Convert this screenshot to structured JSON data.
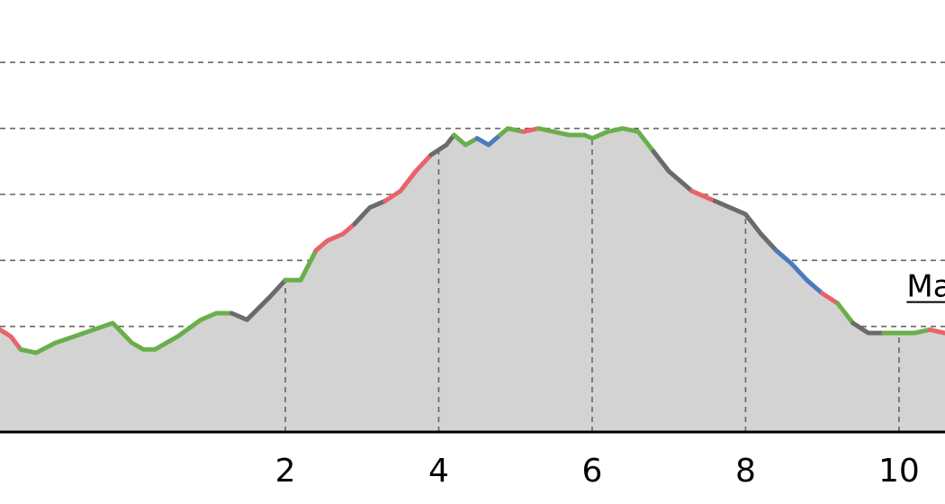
{
  "chart_data": {
    "type": "area",
    "title": "",
    "xlabel": "",
    "ylabel": "",
    "xlim": [
      -1.72,
      10.6
    ],
    "ylim": [
      0,
      6
    ],
    "grid": {
      "x": "dashed",
      "y": "dashed"
    },
    "x_ticks": [
      2,
      4,
      6,
      8,
      10
    ],
    "x_tick_labels": [
      "2",
      "4",
      "6",
      "8",
      "10"
    ],
    "y_gridlines": [
      0.65,
      1.6,
      2.6,
      3.6,
      4.6,
      5.6
    ],
    "fill_color": "#d3d3d3",
    "segment_colors": {
      "red": "#e8636a",
      "green": "#6aaf4a",
      "gray": "#6b6b6b",
      "blue": "#4a7bbf"
    },
    "profile": {
      "x": [
        -1.72,
        -1.58,
        -1.45,
        -1.25,
        -1.0,
        -0.75,
        -0.5,
        -0.25,
        0.0,
        0.15,
        0.3,
        0.6,
        0.9,
        1.1,
        1.3,
        1.5,
        1.8,
        2.0,
        2.2,
        2.4,
        2.55,
        2.75,
        2.9,
        3.1,
        3.3,
        3.5,
        3.7,
        3.9,
        4.1,
        4.2,
        4.35,
        4.5,
        4.65,
        4.8,
        4.9,
        5.1,
        5.3,
        5.5,
        5.7,
        5.9,
        6.0,
        6.2,
        6.4,
        6.6,
        6.8,
        7.0,
        7.3,
        7.6,
        7.8,
        8.0,
        8.2,
        8.4,
        8.6,
        8.8,
        9.0,
        9.2,
        9.4,
        9.6,
        9.8,
        10.0,
        10.2,
        10.4,
        10.6
      ],
      "y": [
        1.55,
        1.45,
        1.25,
        1.2,
        1.35,
        1.45,
        1.55,
        1.65,
        1.35,
        1.25,
        1.25,
        1.45,
        1.7,
        1.8,
        1.8,
        1.7,
        2.05,
        2.3,
        2.3,
        2.75,
        2.9,
        3.0,
        3.15,
        3.4,
        3.5,
        3.65,
        3.95,
        4.2,
        4.35,
        4.5,
        4.35,
        4.45,
        4.35,
        4.5,
        4.6,
        4.55,
        4.6,
        4.55,
        4.5,
        4.5,
        4.45,
        4.55,
        4.6,
        4.55,
        4.25,
        3.95,
        3.65,
        3.5,
        3.4,
        3.3,
        3.0,
        2.75,
        2.55,
        2.3,
        2.1,
        1.95,
        1.65,
        1.5,
        1.5,
        1.5,
        1.5,
        1.55,
        1.5
      ],
      "segments": [
        {
          "color": "red",
          "from": 0,
          "to": 2
        },
        {
          "color": "green",
          "from": 2,
          "to": 14
        },
        {
          "color": "gray",
          "from": 14,
          "to": 17
        },
        {
          "color": "green",
          "from": 17,
          "to": 19
        },
        {
          "color": "red",
          "from": 19,
          "to": 22
        },
        {
          "color": "gray",
          "from": 22,
          "to": 24
        },
        {
          "color": "red",
          "from": 24,
          "to": 27
        },
        {
          "color": "gray",
          "from": 27,
          "to": 29
        },
        {
          "color": "green",
          "from": 29,
          "to": 31
        },
        {
          "color": "blue",
          "from": 31,
          "to": 33
        },
        {
          "color": "green",
          "from": 33,
          "to": 35
        },
        {
          "color": "red",
          "from": 35,
          "to": 36
        },
        {
          "color": "green",
          "from": 36,
          "to": 44
        },
        {
          "color": "gray",
          "from": 44,
          "to": 46
        },
        {
          "color": "red",
          "from": 46,
          "to": 47
        },
        {
          "color": "gray",
          "from": 47,
          "to": 51
        },
        {
          "color": "blue",
          "from": 51,
          "to": 54
        },
        {
          "color": "red",
          "from": 54,
          "to": 55
        },
        {
          "color": "green",
          "from": 55,
          "to": 56
        },
        {
          "color": "gray",
          "from": 56,
          "to": 58
        },
        {
          "color": "green",
          "from": 58,
          "to": 61
        },
        {
          "color": "red",
          "from": 61,
          "to": 62
        }
      ]
    },
    "annotations": [
      {
        "text": "Ma",
        "x": 10.1,
        "y": 2.05,
        "underline": true
      }
    ]
  }
}
